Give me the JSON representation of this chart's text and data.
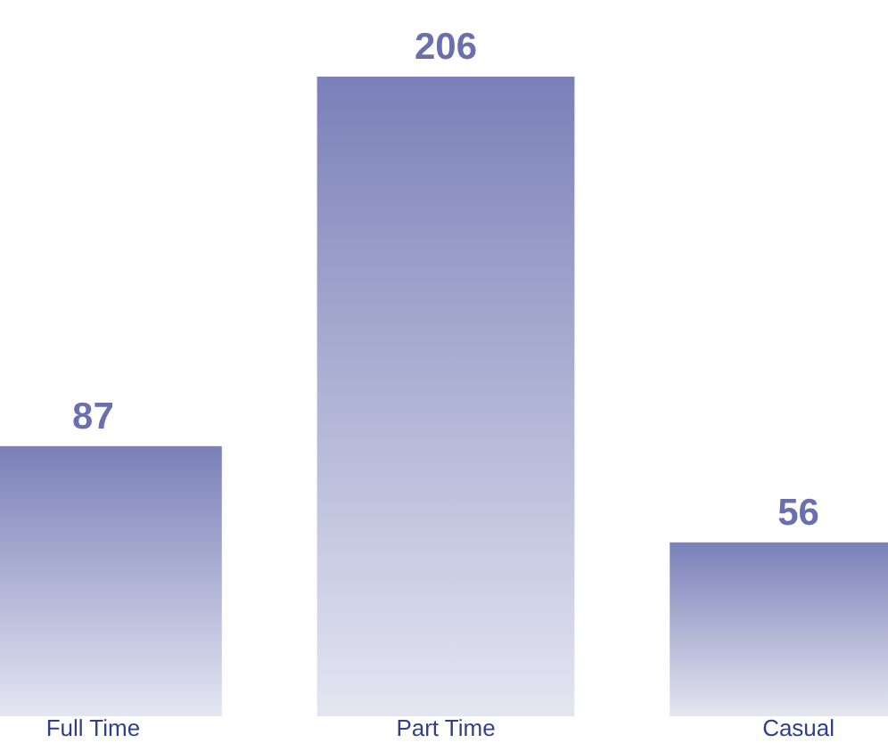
{
  "chart_data": {
    "type": "bar",
    "categories": [
      "Full Time",
      "Part Time",
      "Casual"
    ],
    "values": [
      87,
      206,
      56
    ],
    "color": "#7a80b8",
    "data_labels": true
  }
}
